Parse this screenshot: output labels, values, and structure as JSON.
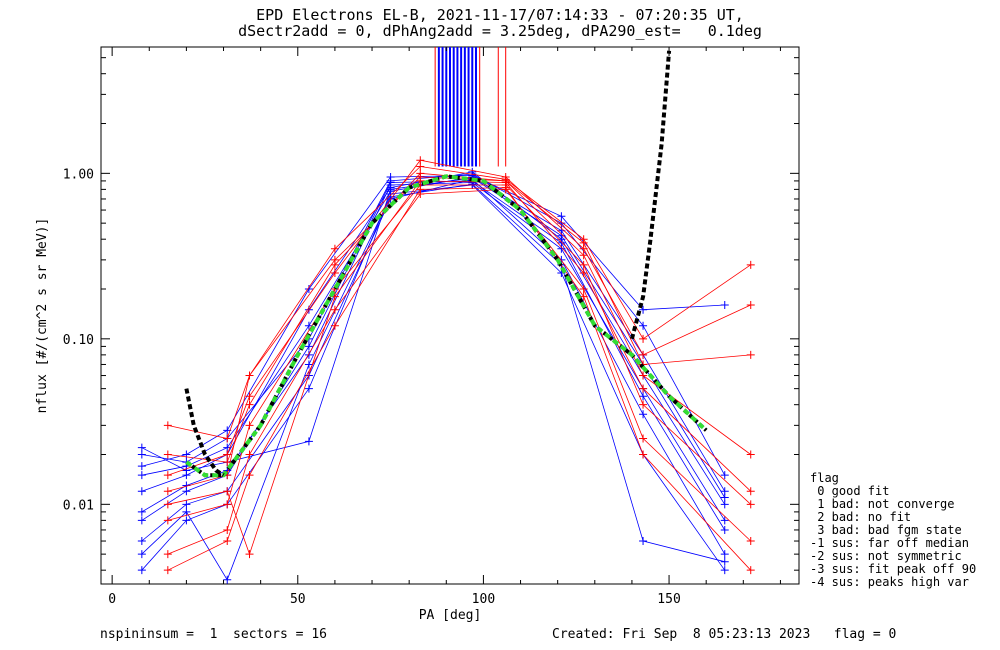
{
  "title_line1": "EPD Electrons EL-B, 2021-11-17/07:14:33 - 07:20:35 UT,",
  "title_line2": "dSectr2add = 0, dPhAng2add = 3.25deg, dPA290_est=   0.1deg",
  "footer_left": "nspininsum =  1  sectors = 16",
  "footer_right": "Created: Fri Sep  8 05:23:13 2023   flag = 0",
  "legend": {
    "title": "flag",
    "items": [
      " 0 good fit",
      " 1 bad: not converge",
      " 2 bad: no fit",
      " 3 bad: bad fgm state",
      "-1 sus: far off median",
      "-2 sus: not symmetric",
      "-3 sus: fit peak off 90",
      "-4 sus: peaks high var"
    ]
  },
  "colors": {
    "series_a": "#0000ff",
    "series_b": "#ff0000",
    "fit": "#33dd33",
    "fit_dash": "#000000"
  },
  "chart_data": {
    "type": "line",
    "xlabel": "PA [deg]",
    "ylabel": "nflux [#/(cm^2 s sr MeV)]",
    "xlim": [
      -3,
      185
    ],
    "ylim": [
      0.0033,
      5.8
    ],
    "yscale": "log",
    "xticks": [
      0,
      50,
      100,
      150
    ],
    "xtick_labels": [
      "0",
      "50",
      "100",
      "150"
    ],
    "yticks": [
      0.01,
      0.1,
      1.0
    ],
    "ytick_labels": [
      "0.01",
      "0.10",
      "1.00"
    ],
    "sector_pa": [
      8,
      15,
      20,
      31,
      37,
      53,
      60,
      75,
      83,
      97,
      106,
      121,
      127,
      143,
      160,
      165,
      172
    ],
    "series": [
      {
        "color": "blue",
        "pa": [
          8,
          20,
          31,
          53,
          75,
          97,
          121,
          143,
          165
        ],
        "values": [
          0.015,
          0.017,
          0.022,
          0.12,
          0.78,
          0.95,
          0.45,
          0.08,
          0.012
        ]
      },
      {
        "color": "blue",
        "pa": [
          8,
          20,
          31,
          53,
          75,
          97,
          121,
          143,
          165
        ],
        "values": [
          0.009,
          0.013,
          0.016,
          0.08,
          0.85,
          0.88,
          0.35,
          0.05,
          0.008
        ]
      },
      {
        "color": "blue",
        "pa": [
          8,
          20,
          31,
          53,
          75,
          97,
          121,
          143,
          165
        ],
        "values": [
          0.02,
          0.018,
          0.025,
          0.1,
          0.9,
          0.99,
          0.5,
          0.12,
          0.015
        ]
      },
      {
        "color": "blue",
        "pa": [
          8,
          20,
          31,
          53,
          75,
          97,
          121,
          143,
          165
        ],
        "values": [
          0.006,
          0.01,
          0.012,
          0.06,
          0.7,
          0.92,
          0.3,
          0.035,
          0.005
        ]
      },
      {
        "color": "blue",
        "pa": [
          8,
          20,
          31,
          53,
          75,
          97,
          121,
          143,
          165
        ],
        "values": [
          0.012,
          0.015,
          0.02,
          0.15,
          0.82,
          1.02,
          0.4,
          0.06,
          0.01
        ]
      },
      {
        "color": "blue",
        "pa": [
          8,
          20,
          31,
          53,
          75,
          97,
          121,
          143,
          165
        ],
        "values": [
          0.004,
          0.008,
          0.01,
          0.05,
          0.75,
          0.85,
          0.25,
          0.02,
          0.004
        ]
      },
      {
        "color": "blue",
        "pa": [
          8,
          20,
          31,
          53,
          75,
          97,
          121,
          143,
          165
        ],
        "values": [
          0.017,
          0.02,
          0.028,
          0.2,
          0.95,
          0.97,
          0.55,
          0.15,
          0.16
        ]
      },
      {
        "color": "blue",
        "pa": [
          8,
          20,
          31,
          53,
          75,
          97,
          121,
          143,
          165
        ],
        "values": [
          0.008,
          0.012,
          0.015,
          0.09,
          0.88,
          0.9,
          0.38,
          0.045,
          0.007
        ]
      },
      {
        "color": "blue",
        "pa": [
          8,
          20,
          31,
          53,
          75,
          97,
          121,
          143,
          165
        ],
        "values": [
          0.022,
          0.016,
          0.018,
          0.024,
          0.8,
          0.94,
          0.42,
          0.07,
          0.011
        ]
      },
      {
        "color": "blue",
        "pa": [
          8,
          20,
          31,
          53,
          75,
          97,
          121,
          143,
          165
        ],
        "values": [
          0.005,
          0.009,
          0.0035,
          0.07,
          0.72,
          0.86,
          0.28,
          0.006,
          0.0045
        ]
      },
      {
        "color": "red",
        "pa": [
          15,
          31,
          37,
          60,
          83,
          106,
          127,
          143,
          172
        ],
        "values": [
          0.012,
          0.015,
          0.06,
          0.3,
          0.95,
          0.9,
          0.32,
          0.06,
          0.02
        ]
      },
      {
        "color": "red",
        "pa": [
          15,
          31,
          37,
          60,
          83,
          106,
          127,
          143,
          172
        ],
        "values": [
          0.008,
          0.01,
          0.03,
          0.2,
          0.85,
          0.85,
          0.28,
          0.04,
          0.01
        ]
      },
      {
        "color": "red",
        "pa": [
          15,
          31,
          37,
          60,
          83,
          106,
          127,
          143,
          172
        ],
        "values": [
          0.03,
          0.025,
          0.06,
          0.35,
          1.1,
          0.92,
          0.4,
          0.1,
          0.28
        ]
      },
      {
        "color": "red",
        "pa": [
          15,
          31,
          37,
          60,
          83,
          106,
          127,
          143,
          172
        ],
        "values": [
          0.005,
          0.007,
          0.02,
          0.15,
          0.75,
          0.8,
          0.2,
          0.025,
          0.006
        ]
      },
      {
        "color": "red",
        "pa": [
          15,
          31,
          37,
          60,
          83,
          106,
          127,
          143,
          172
        ],
        "values": [
          0.015,
          0.02,
          0.045,
          0.25,
          1.2,
          0.95,
          0.35,
          0.08,
          0.16
        ]
      },
      {
        "color": "red",
        "pa": [
          15,
          31,
          37,
          60,
          83,
          106,
          127,
          143,
          172
        ],
        "values": [
          0.01,
          0.012,
          0.005,
          0.18,
          0.9,
          0.88,
          0.25,
          0.05,
          0.012
        ]
      },
      {
        "color": "red",
        "pa": [
          15,
          31,
          37,
          60,
          83,
          106,
          127,
          143,
          172
        ],
        "values": [
          0.004,
          0.006,
          0.015,
          0.12,
          0.8,
          0.82,
          0.18,
          0.02,
          0.004
        ]
      },
      {
        "color": "red",
        "pa": [
          15,
          31,
          37,
          60,
          83,
          106,
          127,
          143,
          172
        ],
        "values": [
          0.02,
          0.018,
          0.04,
          0.28,
          1.0,
          0.9,
          0.38,
          0.07,
          0.08
        ]
      }
    ],
    "spikes": {
      "blue_pa": [
        88,
        89,
        90,
        91,
        92,
        93,
        94,
        95,
        96,
        97,
        98
      ],
      "red_pa": [
        87,
        99,
        104,
        106
      ],
      "from_value": 1.1
    },
    "fit_curve": {
      "pa": [
        20,
        25,
        30,
        40,
        50,
        60,
        70,
        80,
        90,
        100,
        110,
        120,
        130,
        140,
        150,
        160
      ],
      "values": [
        0.018,
        0.015,
        0.015,
        0.03,
        0.08,
        0.2,
        0.5,
        0.82,
        0.96,
        0.9,
        0.6,
        0.3,
        0.12,
        0.08,
        0.045,
        0.028
      ]
    },
    "dashed_curve_low": {
      "pa": [
        20,
        22,
        25,
        28,
        30
      ],
      "values": [
        0.05,
        0.03,
        0.02,
        0.016,
        0.015
      ]
    },
    "dashed_curve_high": {
      "pa": [
        140,
        143,
        145,
        148,
        150
      ],
      "values": [
        0.1,
        0.18,
        0.4,
        1.5,
        5.5
      ]
    }
  }
}
